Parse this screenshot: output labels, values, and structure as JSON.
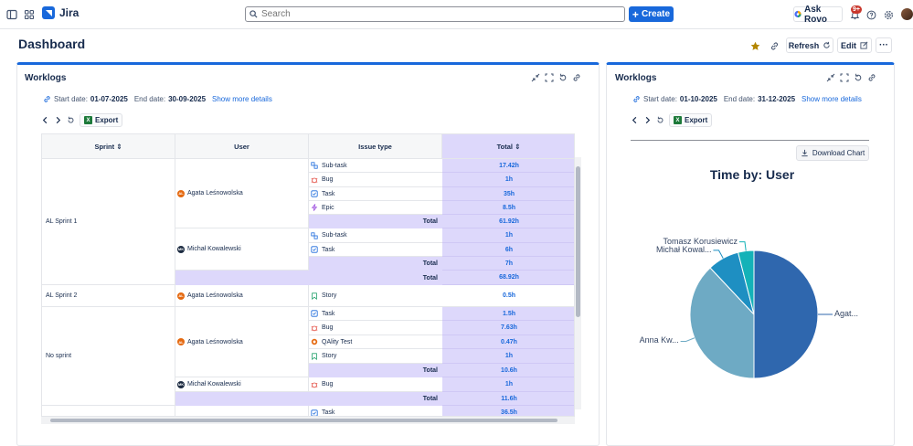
{
  "app": {
    "name": "Jira"
  },
  "search": {
    "placeholder": "Search"
  },
  "header": {
    "create_label": "Create",
    "rovo_label": "Ask Rovo",
    "notifications_badge": "9+"
  },
  "page": {
    "title": "Dashboard",
    "refresh_label": "Refresh",
    "edit_label": "Edit",
    "more_label": "···"
  },
  "left_gadget": {
    "title": "Worklogs",
    "start_label": "Start date:",
    "start_date": "01-07-2025",
    "end_label": "End date:",
    "end_date": "30-09-2025",
    "details_link": "Show more details",
    "export_label": "Export",
    "table": {
      "headers": {
        "sprint": "Sprint",
        "user": "User",
        "issue_type": "Issue type",
        "total": "Total"
      },
      "sprints": [
        "AL Sprint 1",
        "AL Sprint 2",
        "No sprint"
      ],
      "users": [
        "Agata Leśnowolska",
        "Michał Kowalewski",
        "Agata Leśnowolska",
        "Agata Leśnowolska",
        "Michał Kowalewski"
      ],
      "user_initials": [
        "AL",
        "MK",
        "AL",
        "AL",
        "MK"
      ],
      "rows": [
        {
          "type": "Sub-task",
          "total": "17.42h"
        },
        {
          "type": "Bug",
          "total": "1h"
        },
        {
          "type": "Task",
          "total": "35h"
        },
        {
          "type": "Epic",
          "total": "8.5h"
        },
        {
          "type": "Total",
          "total": "61.92h"
        },
        {
          "type": "Sub-task",
          "total": "1h"
        },
        {
          "type": "Task",
          "total": "6h"
        },
        {
          "type": "Total",
          "total": "7h"
        },
        {
          "type": "Total",
          "total": "68.92h"
        },
        {
          "type": "Story",
          "total": "0.5h"
        },
        {
          "type": "Task",
          "total": "1.5h"
        },
        {
          "type": "Bug",
          "total": "7.63h"
        },
        {
          "type": "QAlity Test",
          "total": "0.47h"
        },
        {
          "type": "Story",
          "total": "1h"
        },
        {
          "type": "Total",
          "total": "10.6h"
        },
        {
          "type": "Bug",
          "total": "1h"
        },
        {
          "type": "Total",
          "total": "11.6h"
        },
        {
          "type": "Task",
          "total": "36.5h"
        }
      ]
    }
  },
  "right_gadget": {
    "title": "Worklogs",
    "start_label": "Start date:",
    "start_date": "01-10-2025",
    "end_label": "End date:",
    "end_date": "31-12-2025",
    "details_link": "Show more details",
    "export_label": "Export",
    "download_label": "Download Chart"
  },
  "chart_data": {
    "type": "pie",
    "title": "Time by: User",
    "slices": [
      {
        "label": "Agat...",
        "value": 50,
        "color": "#2f67ae"
      },
      {
        "label": "Anna Kw...",
        "value": 38,
        "color": "#6eaac4"
      },
      {
        "label": "Michał Kowal...",
        "value": 8,
        "color": "#1e8fc2"
      },
      {
        "label": "Tomasz Korusiewicz",
        "value": 4,
        "color": "#14b2b8"
      }
    ]
  },
  "colors": {
    "accent": "#1868db",
    "total_bg": "#ddd8fb"
  }
}
